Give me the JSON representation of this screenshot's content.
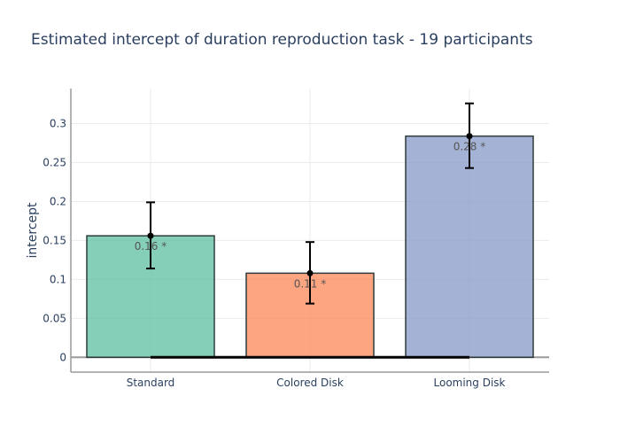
{
  "chart_data": {
    "type": "bar",
    "title": "Estimated intercept of duration reproduction task - 19 participants",
    "xlabel": "",
    "ylabel": "intercept",
    "categories": [
      "Standard",
      "Colored Disk",
      "Looming Disk"
    ],
    "values": [
      0.156,
      0.108,
      0.284
    ],
    "error_low": [
      0.114,
      0.069,
      0.243
    ],
    "error_high": [
      0.199,
      0.148,
      0.326
    ],
    "bar_labels": [
      "0.16 *",
      "0.11 *",
      "0.28 *"
    ],
    "bar_colors": [
      "#66c2a5",
      "#fc8d62",
      "#8da0cb"
    ],
    "ylim": [
      -0.019,
      0.345
    ],
    "yticks": [
      0,
      0.05,
      0.1,
      0.15,
      0.2,
      0.25,
      0.3
    ],
    "ytick_labels": [
      "0",
      "0.05",
      "0.1",
      "0.15",
      "0.2",
      "0.25",
      "0.3"
    ],
    "grid": true,
    "legend": "none",
    "reference_line": {
      "y": 0,
      "from_category": "Standard",
      "to_category": "Looming Disk"
    }
  },
  "colors": {
    "text": "#2a3f5f",
    "grid": "#ebebeb",
    "axis": "#9a9a9a",
    "bar_edge": "#2f3b3b",
    "error_bar": "#000000",
    "reference_line": "#000000"
  }
}
